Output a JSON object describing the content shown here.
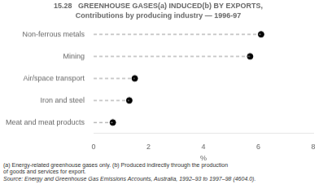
{
  "chart_data": {
    "type": "lollipop",
    "title": "15.28   GREENHOUSE GASES(a) INDUCED(b) BY EXPORTS,",
    "subtitle": "Contributions by producing industry — 1996-97",
    "categories": [
      "Meat and meat products",
      "Iron and steel",
      "Air/space transport",
      "Mining",
      "Non-ferrous metals"
    ],
    "values": [
      0.7,
      1.3,
      1.5,
      5.7,
      6.1
    ],
    "xlabel": "%",
    "xlim": [
      0,
      8
    ],
    "xticks": [
      0,
      2,
      4,
      6,
      8
    ],
    "orientation": "horizontal",
    "color": "#000000",
    "marker": "circle",
    "line_style": "dashed",
    "grid": false,
    "annotations": [
      "(a) Energy-related greenhouse gases only.  (b) Produced indirectly through the production",
      "of goods and services for export.",
      "Source:  Energy and Greenhouse Gas Emissions Accounts, Australia, 1992–93 to 1997–98 (4604.0)."
    ]
  }
}
